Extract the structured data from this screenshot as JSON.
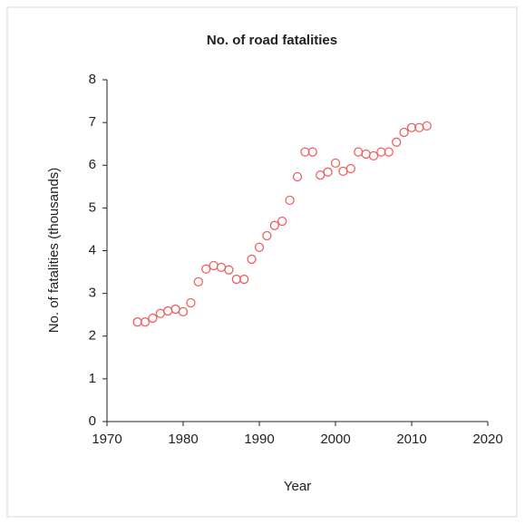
{
  "chart_data": {
    "type": "scatter",
    "title": "No. of road fatalities",
    "xlabel": "Year",
    "ylabel": "No. of fatalities (thousands)",
    "series": [
      {
        "color": "#f06060",
        "x": [
          1974,
          1975,
          1976,
          1977,
          1978,
          1979,
          1980,
          1981,
          1982,
          1983,
          1984,
          1985,
          1986,
          1987,
          1988,
          1989,
          1990,
          1991,
          1992,
          1993,
          1994,
          1995,
          1996,
          1997,
          1998,
          1999,
          2000,
          2001,
          2002,
          2003,
          2004,
          2005,
          2006,
          2007,
          2008,
          2009,
          2010,
          2011,
          2012
        ],
        "values": [
          2.33,
          2.33,
          2.42,
          2.53,
          2.59,
          2.63,
          2.57,
          2.78,
          3.27,
          3.57,
          3.65,
          3.61,
          3.55,
          3.33,
          3.33,
          3.8,
          4.08,
          4.35,
          4.59,
          4.69,
          5.18,
          5.73,
          6.31,
          6.31,
          5.77,
          5.84,
          6.05,
          5.86,
          5.92,
          6.31,
          6.26,
          6.22,
          6.31,
          6.31,
          6.54,
          6.77,
          6.88,
          6.88,
          6.92
        ]
      }
    ],
    "xlim": [
      1970,
      2020
    ],
    "xticks": [
      1970,
      1980,
      1990,
      2000,
      2010,
      2020
    ],
    "ylim": [
      0,
      8
    ],
    "yticks": [
      0,
      1,
      2,
      3,
      4,
      5,
      6,
      7,
      8
    ]
  }
}
